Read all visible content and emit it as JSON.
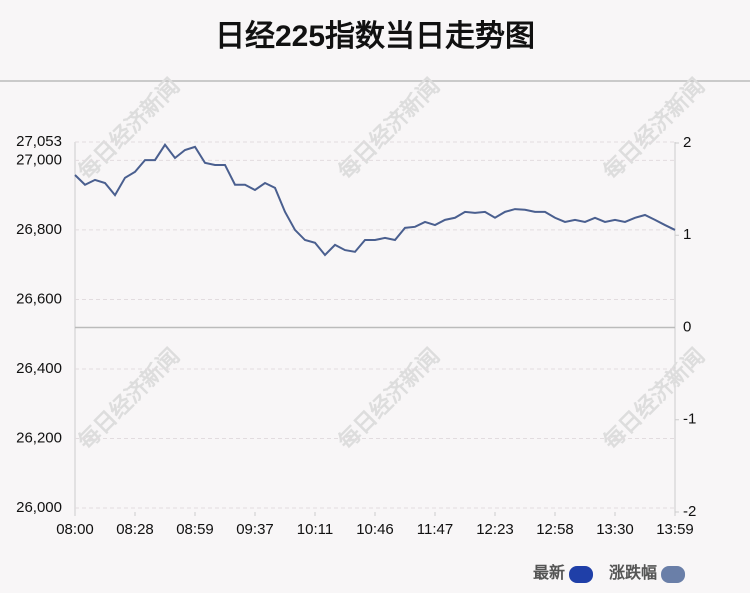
{
  "chart_data": {
    "type": "line",
    "title": "日经225指数当日走势图",
    "watermark": "每日经济新闻",
    "xlim": [
      0,
      60
    ],
    "xticks": [
      {
        "value": 0,
        "label": "08:00"
      },
      {
        "value": 6,
        "label": "08:28"
      },
      {
        "value": 12,
        "label": "08:59"
      },
      {
        "value": 18,
        "label": "09:37"
      },
      {
        "value": 24,
        "label": "10:11"
      },
      {
        "value": 30,
        "label": "10:46"
      },
      {
        "value": 36,
        "label": "11:47"
      },
      {
        "value": 42,
        "label": "12:23"
      },
      {
        "value": 48,
        "label": "12:58"
      },
      {
        "value": 54,
        "label": "13:30"
      },
      {
        "value": 60,
        "label": "13:59"
      }
    ],
    "ylim": [
      26000,
      27053
    ],
    "yticks": [
      {
        "value": 26000,
        "label": "26,000"
      },
      {
        "value": 26200,
        "label": "26,200"
      },
      {
        "value": 26400,
        "label": "26,400"
      },
      {
        "value": 26600,
        "label": "26,600"
      },
      {
        "value": 26800,
        "label": "26,800"
      },
      {
        "value": 27000,
        "label": "27,000"
      },
      {
        "value": 27053,
        "label": "27,053"
      }
    ],
    "y2lim": [
      -2,
      2
    ],
    "y2ticks": [
      -2,
      -1,
      0,
      1,
      2
    ],
    "grid": true,
    "series": [
      {
        "name": "最新",
        "color": "#4a5f8f",
        "legend_color": "#1f3fa8",
        "values": [
          26958,
          26930,
          26944,
          26935,
          26900,
          26950,
          26967,
          27001,
          27001,
          27045,
          27007,
          27030,
          27039,
          26993,
          26987,
          26987,
          26930,
          26930,
          26915,
          26935,
          26921,
          26852,
          26800,
          26771,
          26763,
          26728,
          26757,
          26742,
          26737,
          26771,
          26771,
          26777,
          26771,
          26806,
          26809,
          26823,
          26814,
          26829,
          26835,
          26852,
          26849,
          26852,
          26835,
          26852,
          26860,
          26858,
          26852,
          26852,
          26835,
          26823,
          26829,
          26823,
          26835,
          26823,
          26829,
          26823,
          26835,
          26843,
          26829,
          26814,
          26800
        ]
      },
      {
        "name": "涨跌幅",
        "color": "#6a7fa8",
        "axis": "y2",
        "values": []
      }
    ]
  }
}
